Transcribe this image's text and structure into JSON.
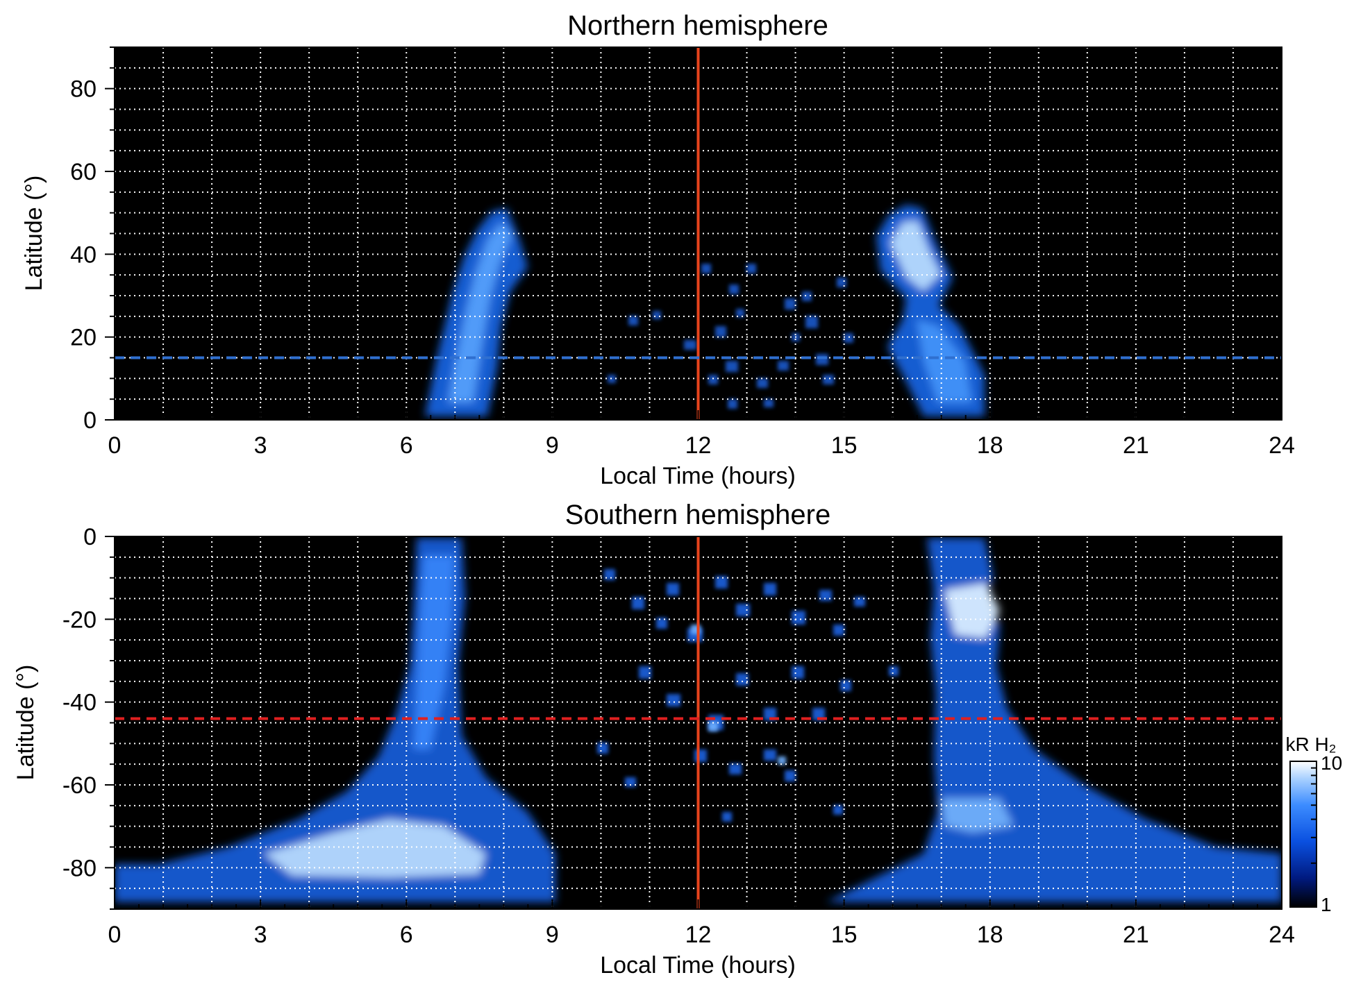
{
  "chart_data": [
    {
      "type": "heatmap",
      "title": "Northern hemisphere",
      "xlabel": "Local Time (hours)",
      "ylabel": "Latitude (°)",
      "xlim": [
        0,
        24
      ],
      "ylim": [
        0,
        90
      ],
      "xticks": [
        0,
        3,
        6,
        9,
        12,
        15,
        18,
        21,
        24
      ],
      "xtick_labels": [
        "0",
        "3",
        "6",
        "9",
        "12",
        "15",
        "18",
        "21",
        "24"
      ],
      "yticks": [
        0,
        20,
        40,
        60,
        80
      ],
      "ytick_labels": [
        "0",
        "20",
        "40",
        "60",
        "80"
      ],
      "grid": true,
      "reference_lines": [
        {
          "orientation": "vertical",
          "value": 12,
          "color": "#e8441c",
          "style": "solid"
        },
        {
          "orientation": "horizontal",
          "value": 15,
          "color": "#2f6fd0",
          "style": "dashed"
        }
      ],
      "emission_regions": [
        {
          "local_time": [
            6.3,
            8.8
          ],
          "latitude": [
            0,
            52
          ],
          "peak_kR": 6
        },
        {
          "local_time": [
            10,
            15.2
          ],
          "latitude": [
            0,
            38
          ],
          "peak_kR": 3
        },
        {
          "local_time": [
            15.7,
            18
          ],
          "latitude": [
            0,
            54
          ],
          "peak_kR": 9
        }
      ]
    },
    {
      "type": "heatmap",
      "title": "Southern hemisphere",
      "xlabel": "Local Time (hours)",
      "ylabel": "Latitude (°)",
      "xlim": [
        0,
        24
      ],
      "ylim": [
        -90,
        0
      ],
      "xticks": [
        0,
        3,
        6,
        9,
        12,
        15,
        18,
        21,
        24
      ],
      "xtick_labels": [
        "0",
        "3",
        "6",
        "9",
        "12",
        "15",
        "18",
        "21",
        "24"
      ],
      "yticks": [
        0,
        -20,
        -40,
        -60,
        -80
      ],
      "ytick_labels": [
        "0",
        "-20",
        "-40",
        "-60",
        "-80"
      ],
      "grid": true,
      "reference_lines": [
        {
          "orientation": "vertical",
          "value": 12,
          "color": "#e8441c",
          "style": "solid"
        },
        {
          "orientation": "horizontal",
          "value": -44,
          "color": "#e02020",
          "style": "dashed"
        }
      ],
      "emission_regions": [
        {
          "local_time": [
            0,
            7.8
          ],
          "latitude": [
            -88,
            0
          ],
          "peak_kR": 9
        },
        {
          "local_time": [
            9.5,
            15.5
          ],
          "latitude": [
            -75,
            -5
          ],
          "peak_kR": 6
        },
        {
          "local_time": [
            16.5,
            24
          ],
          "latitude": [
            -88,
            0
          ],
          "peak_kR": 10
        }
      ],
      "colorbar": {
        "label": "kR H₂",
        "scale": "log",
        "range": [
          1,
          10
        ],
        "tick_labels": [
          "1",
          "10"
        ],
        "colormap": [
          "#000000",
          "#001a80",
          "#0a50e0",
          "#3c8cff",
          "#a8d0ff",
          "#ffffff"
        ]
      }
    }
  ]
}
